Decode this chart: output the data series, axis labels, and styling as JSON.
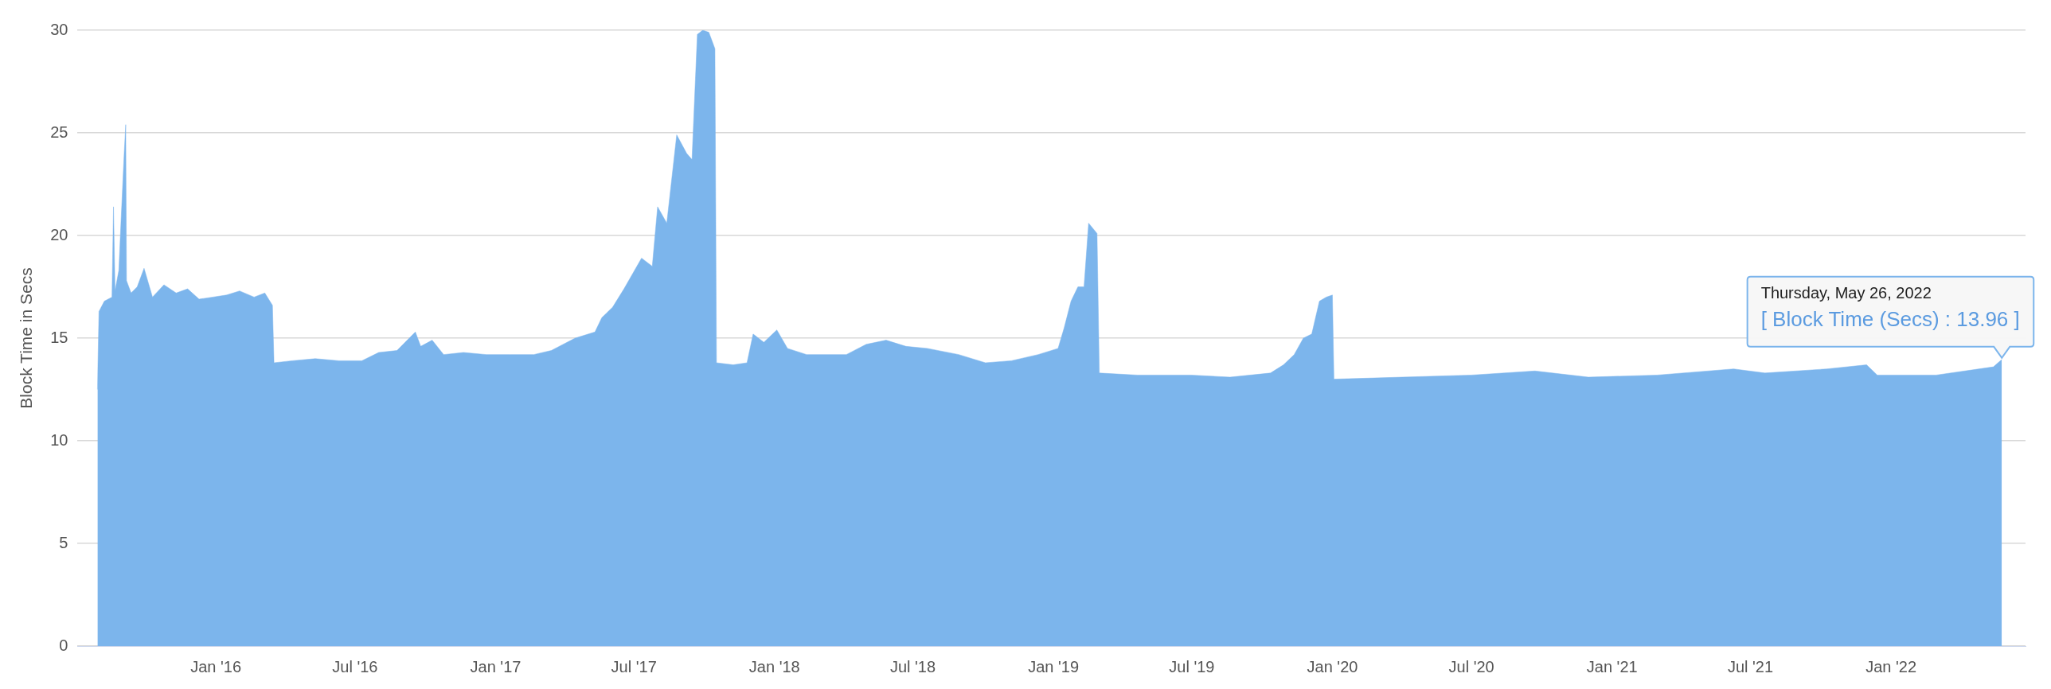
{
  "chart_data": {
    "type": "area",
    "ylabel": "Block Time in Secs",
    "xlim": [
      "2015-07-04",
      "2022-06-26"
    ],
    "xticks": [
      {
        "value": "2016-01-01",
        "label": "Jan '16"
      },
      {
        "value": "2016-07-01",
        "label": "Jul '16"
      },
      {
        "value": "2017-01-01",
        "label": "Jan '17"
      },
      {
        "value": "2017-07-01",
        "label": "Jul '17"
      },
      {
        "value": "2018-01-01",
        "label": "Jan '18"
      },
      {
        "value": "2018-07-01",
        "label": "Jul '18"
      },
      {
        "value": "2019-01-01",
        "label": "Jan '19"
      },
      {
        "value": "2019-07-01",
        "label": "Jul '19"
      },
      {
        "value": "2020-01-01",
        "label": "Jan '20"
      },
      {
        "value": "2020-07-01",
        "label": "Jul '20"
      },
      {
        "value": "2021-01-01",
        "label": "Jan '21"
      },
      {
        "value": "2021-07-01",
        "label": "Jul '21"
      },
      {
        "value": "2022-01-01",
        "label": "Jan '22"
      }
    ],
    "ylim": [
      0,
      30
    ],
    "yticks": [
      0,
      5,
      10,
      15,
      20,
      25,
      30
    ],
    "grid": "y",
    "legend": false,
    "series": [
      {
        "color": "#7cb5ec",
        "x": [
          "2015-07-30",
          "2015-08-01",
          "2015-08-08",
          "2015-08-18",
          "2015-08-20",
          "2015-08-22",
          "2015-08-27",
          "2015-08-30",
          "2015-09-03",
          "2015-09-05",
          "2015-09-06",
          "2015-09-12",
          "2015-09-20",
          "2015-09-29",
          "2015-10-10",
          "2015-10-25",
          "2015-11-10",
          "2015-11-25",
          "2015-12-10",
          "2015-12-28",
          "2016-01-15",
          "2016-02-01",
          "2016-02-20",
          "2016-03-05",
          "2016-03-15",
          "2016-03-17",
          "2016-04-10",
          "2016-05-10",
          "2016-06-10",
          "2016-07-10",
          "2016-08-01",
          "2016-08-25",
          "2016-09-18",
          "2016-09-25",
          "2016-10-10",
          "2016-10-25",
          "2016-11-20",
          "2016-12-20",
          "2017-01-20",
          "2017-02-20",
          "2017-03-15",
          "2017-04-15",
          "2017-05-11",
          "2017-05-20",
          "2017-06-03",
          "2017-06-18",
          "2017-07-11",
          "2017-07-25",
          "2017-08-01",
          "2017-08-13",
          "2017-08-26",
          "2017-09-08",
          "2017-09-15",
          "2017-09-22",
          "2017-09-29",
          "2017-10-07",
          "2017-10-15",
          "2017-10-17",
          "2017-11-08",
          "2017-11-26",
          "2017-12-04",
          "2017-12-18",
          "2018-01-04",
          "2018-01-18",
          "2018-02-12",
          "2018-04-05",
          "2018-05-01",
          "2018-05-27",
          "2018-06-22",
          "2018-07-20",
          "2018-08-30",
          "2018-10-04",
          "2018-11-07",
          "2018-12-12",
          "2019-01-07",
          "2019-01-15",
          "2019-01-24",
          "2019-02-02",
          "2019-02-10",
          "2019-02-16",
          "2019-02-27",
          "2019-03-02",
          "2019-04-21",
          "2019-06-30",
          "2019-08-20",
          "2019-10-12",
          "2019-10-29",
          "2019-11-12",
          "2019-11-24",
          "2019-12-05",
          "2019-12-15",
          "2019-12-24",
          "2020-01-01",
          "2020-01-03",
          "2020-04-01",
          "2020-07-01",
          "2020-09-22",
          "2020-12-01",
          "2021-03-01",
          "2021-06-09",
          "2021-07-20",
          "2021-10-09",
          "2021-11-30",
          "2021-12-14",
          "2022-03-01",
          "2022-05-15",
          "2022-05-26"
        ],
        "values": [
          12.5,
          16.3,
          16.8,
          17.0,
          21.4,
          17.3,
          18.3,
          20.8,
          24.0,
          25.4,
          17.8,
          17.2,
          17.5,
          18.4,
          17.0,
          17.6,
          17.2,
          17.4,
          16.9,
          17.0,
          17.1,
          17.3,
          17.0,
          17.2,
          16.6,
          13.8,
          13.9,
          14.0,
          13.9,
          13.9,
          14.3,
          14.4,
          15.3,
          14.6,
          14.9,
          14.2,
          14.3,
          14.2,
          14.2,
          14.2,
          14.4,
          15.0,
          15.3,
          16.0,
          16.5,
          17.4,
          18.9,
          18.5,
          21.4,
          20.6,
          24.9,
          24.0,
          23.7,
          29.8,
          30.0,
          29.9,
          29.1,
          13.8,
          13.7,
          13.8,
          15.2,
          14.8,
          15.4,
          14.5,
          14.2,
          14.2,
          14.7,
          14.9,
          14.6,
          14.5,
          14.2,
          13.8,
          13.9,
          14.2,
          14.5,
          15.5,
          16.8,
          17.5,
          17.5,
          20.6,
          20.1,
          13.3,
          13.2,
          13.2,
          13.1,
          13.3,
          13.7,
          14.2,
          15.0,
          15.2,
          16.8,
          17.0,
          17.1,
          13.0,
          13.1,
          13.2,
          13.4,
          13.1,
          13.2,
          13.5,
          13.3,
          13.5,
          13.7,
          13.2,
          13.2,
          13.6,
          13.96
        ]
      }
    ],
    "annotations": [
      "Thursday, May 26, 2022",
      "[ Block Time (Secs) : 13.96 ]"
    ]
  }
}
